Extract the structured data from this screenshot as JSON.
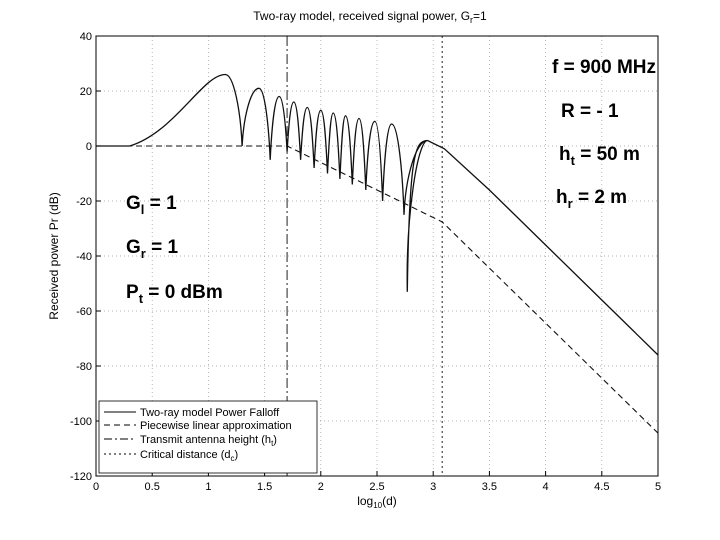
{
  "chart_data": {
    "type": "line",
    "title": "Two-ray model, received signal power, G",
    "title_sub": "r",
    "title_tail": "=1",
    "xlabel_main": "log",
    "xlabel_sub": "10",
    "xlabel_tail": "(d)",
    "ylabel": "Received power Pr (dB)",
    "xlim": [
      0,
      5
    ],
    "ylim": [
      -120,
      40
    ],
    "xticks": [
      "0",
      "0.5",
      "1",
      "1.5",
      "2",
      "2.5",
      "3",
      "3.5",
      "4",
      "4.5",
      "5"
    ],
    "yticks": [
      "40",
      "20",
      "0",
      "-20",
      "-40",
      "-60",
      "-80",
      "-100",
      "-120"
    ],
    "grid": "dotted",
    "legend_position": "bottom-left",
    "legend": [
      {
        "label": "Two-ray model Power Falloff",
        "style": "solid"
      },
      {
        "label": "Piecewise linear approximation",
        "style": "dashed"
      },
      {
        "label": "Transmit antenna height (h",
        "sub": "t",
        "tail": ")",
        "style": "dashdot"
      },
      {
        "label": "Critical distance (d",
        "sub": "c",
        "tail": ")",
        "style": "dotted"
      }
    ],
    "vertical_lines": [
      {
        "x": 1.7,
        "meaning": "transmit antenna height"
      },
      {
        "x": 3.08,
        "meaning": "critical distance"
      }
    ],
    "two_ray_model": {
      "start": [
        0,
        0
      ],
      "peaks": [
        [
          1.15,
          26
        ],
        [
          1.45,
          21
        ],
        [
          1.63,
          18
        ],
        [
          1.76,
          16
        ],
        [
          1.88,
          14
        ],
        [
          2.0,
          13
        ],
        [
          2.11,
          12
        ],
        [
          2.22,
          11
        ],
        [
          2.34,
          10
        ],
        [
          2.48,
          9
        ],
        [
          2.63,
          8
        ],
        [
          2.95,
          2
        ]
      ],
      "nulls": [
        [
          1.3,
          0
        ],
        [
          1.55,
          -5
        ],
        [
          1.7,
          -2
        ],
        [
          1.82,
          -5
        ],
        [
          1.94,
          -8
        ],
        [
          2.06,
          -10
        ],
        [
          2.17,
          -12
        ],
        [
          2.28,
          -14
        ],
        [
          2.4,
          -16
        ],
        [
          2.55,
          -20
        ],
        [
          2.74,
          -25
        ],
        [
          2.77,
          -53
        ]
      ],
      "tail_points": [
        [
          3.1,
          -1
        ],
        [
          3.5,
          -16
        ],
        [
          4.0,
          -36
        ],
        [
          4.5,
          -56
        ],
        [
          5.0,
          -76
        ]
      ]
    },
    "piecewise_linear": {
      "points": [
        [
          0,
          0
        ],
        [
          1.7,
          0
        ],
        [
          3.08,
          -27.6
        ],
        [
          5.0,
          -104.4
        ]
      ]
    }
  },
  "annotations": {
    "freq": {
      "name": "f",
      "value": "900 MHz"
    },
    "refl": {
      "name": "R",
      "value": "- 1"
    },
    "ht": {
      "name": "h",
      "sub": "t",
      "value": "50 m"
    },
    "hr": {
      "name": "h",
      "sub": "r",
      "value": "2 m"
    },
    "gl": {
      "name": "G",
      "sub": "l",
      "value": "1"
    },
    "gr": {
      "name": "G",
      "sub": "r",
      "value": "1"
    },
    "pt": {
      "name": "P",
      "sub": "t",
      "value": "0 dBm"
    }
  }
}
